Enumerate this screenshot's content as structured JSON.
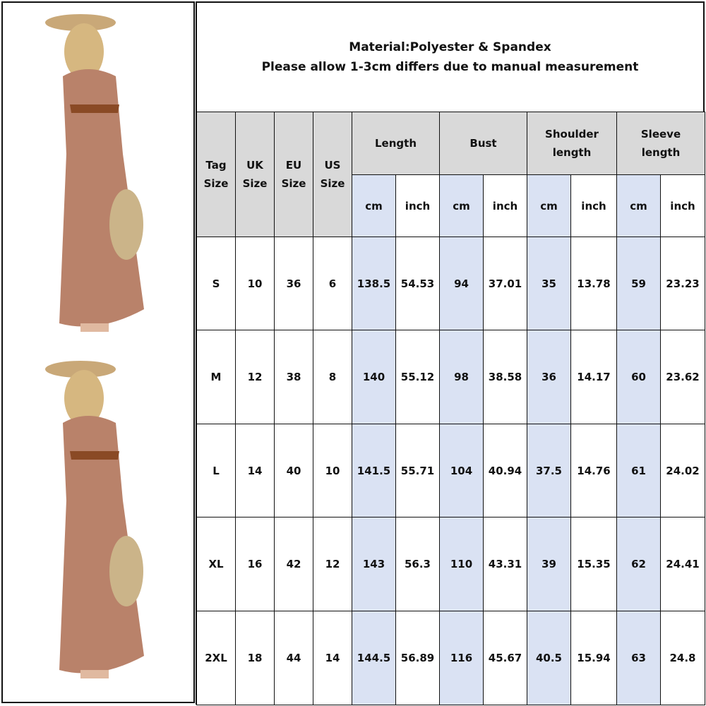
{
  "note": {
    "line1": "Material:Polyester & Spandex",
    "line2": "Please allow 1-3cm differs due to manual measurement"
  },
  "colors": {
    "header": "#d9d9d9",
    "cm_column": "#dae2f3",
    "border": "#111111"
  },
  "headers": {
    "tag_size": "Tag Size",
    "uk_size": "UK Size",
    "eu_size": "EU Size",
    "us_size": "US Size",
    "groups": [
      "Length",
      "Bust",
      "Shoulder length",
      "Sleeve length"
    ],
    "unit_cm": "cm",
    "unit_inch": "inch"
  },
  "rows": [
    [
      "S",
      "10",
      "36",
      "6",
      "138.5",
      "54.53",
      "94",
      "37.01",
      "35",
      "13.78",
      "59",
      "23.23"
    ],
    [
      "M",
      "12",
      "38",
      "8",
      "140",
      "55.12",
      "98",
      "38.58",
      "36",
      "14.17",
      "60",
      "23.62"
    ],
    [
      "L",
      "14",
      "40",
      "10",
      "141.5",
      "55.71",
      "104",
      "40.94",
      "37.5",
      "14.76",
      "61",
      "24.02"
    ],
    [
      "XL",
      "16",
      "42",
      "12",
      "143",
      "56.3",
      "110",
      "43.31",
      "39",
      "15.35",
      "62",
      "24.41"
    ],
    [
      "2XL",
      "18",
      "44",
      "14",
      "144.5",
      "56.89",
      "116",
      "45.67",
      "40.5",
      "15.94",
      "63",
      "24.8"
    ]
  ],
  "photos": [
    {
      "name": "model-photo-front"
    },
    {
      "name": "model-photo-front-2"
    }
  ]
}
